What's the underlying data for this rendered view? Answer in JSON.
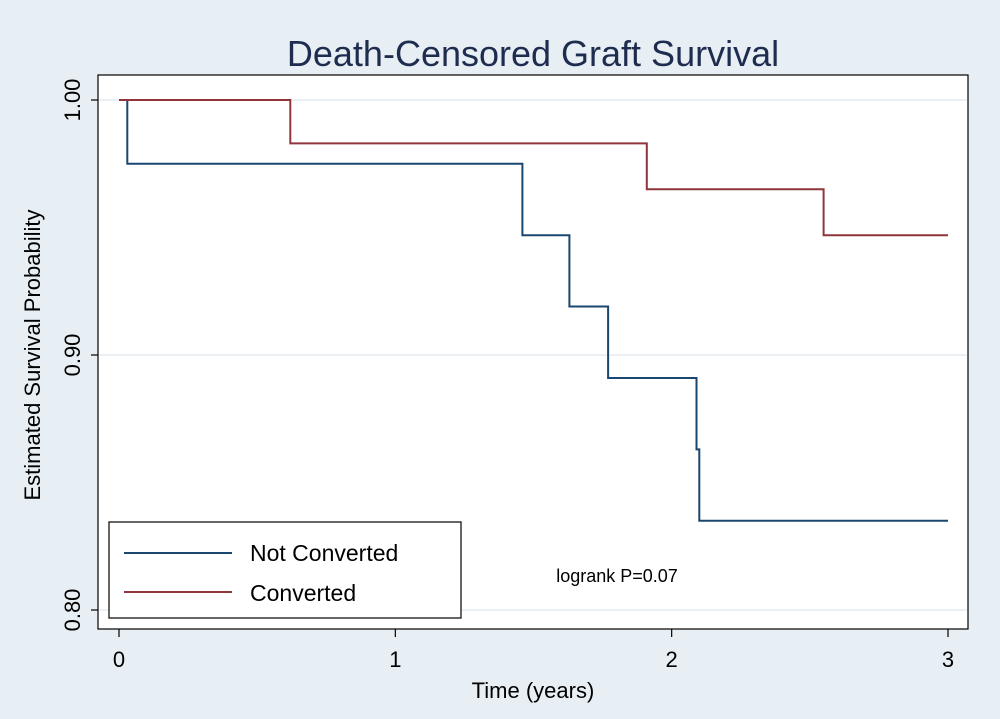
{
  "chart_data": {
    "type": "line",
    "title": "Death-Censored Graft Survival",
    "xlabel": "Time (years)",
    "ylabel": "Estimated Survival Probability",
    "xlim": [
      0,
      3
    ],
    "ylim": [
      0.8,
      1.0
    ],
    "xticks": [
      "0",
      "1",
      "2",
      "3"
    ],
    "yticks": [
      "0.80",
      "0.90",
      "1.00"
    ],
    "grid": true,
    "legend_position": "bottom-left",
    "annotation": "logrank P=0.07",
    "colors": {
      "not_converted": "#1a476f",
      "converted": "#90353b",
      "background": "#e8eff4"
    },
    "series": [
      {
        "name": "Not Converted",
        "points": [
          [
            0,
            1.0
          ],
          [
            0.03,
            1.0
          ],
          [
            0.03,
            0.975
          ],
          [
            1.46,
            0.975
          ],
          [
            1.46,
            0.947
          ],
          [
            1.63,
            0.947
          ],
          [
            1.63,
            0.919
          ],
          [
            1.77,
            0.919
          ],
          [
            1.77,
            0.891
          ],
          [
            2.09,
            0.891
          ],
          [
            2.09,
            0.863
          ],
          [
            2.1,
            0.863
          ],
          [
            2.1,
            0.835
          ],
          [
            3.0,
            0.835
          ]
        ]
      },
      {
        "name": "Converted",
        "points": [
          [
            0,
            1.0
          ],
          [
            0.62,
            1.0
          ],
          [
            0.62,
            0.983
          ],
          [
            1.91,
            0.983
          ],
          [
            1.91,
            0.965
          ],
          [
            2.55,
            0.965
          ],
          [
            2.55,
            0.947
          ],
          [
            3.0,
            0.947
          ]
        ]
      }
    ]
  }
}
